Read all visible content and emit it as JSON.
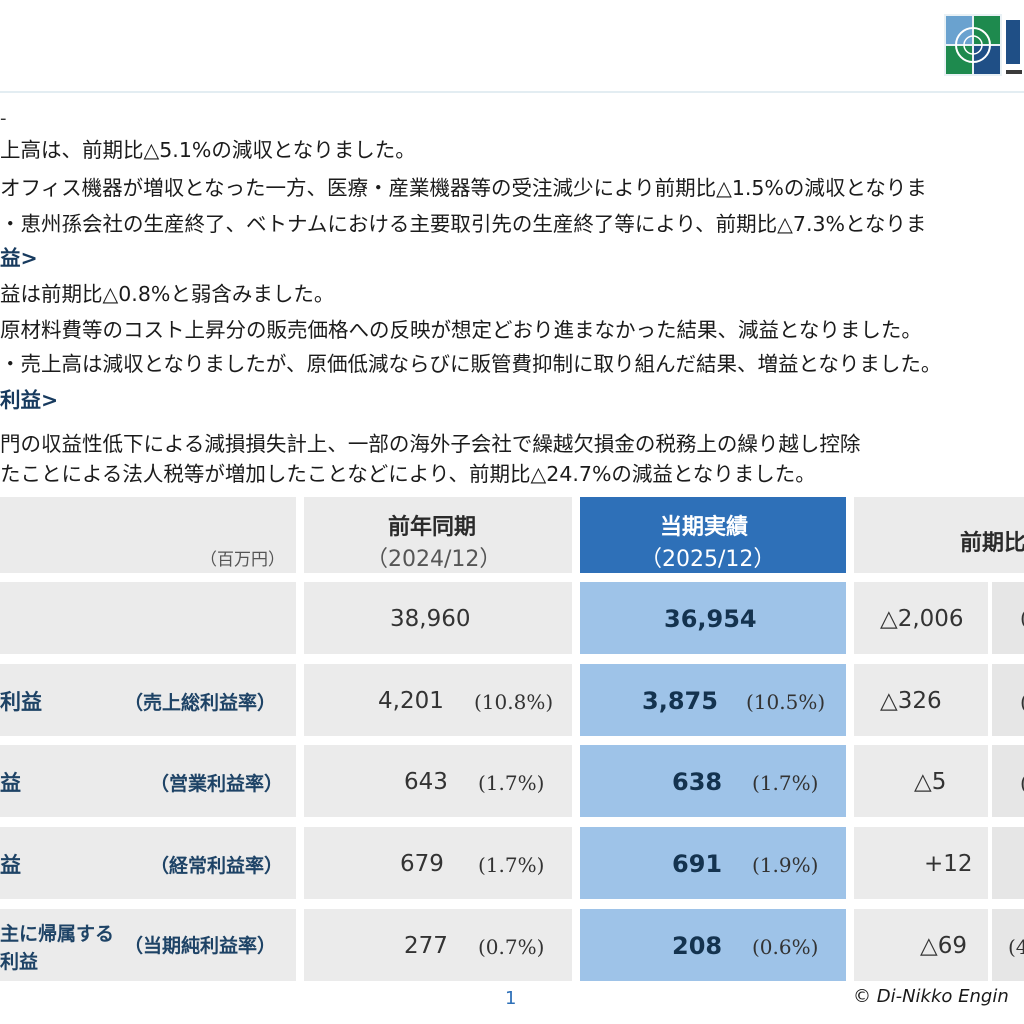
{
  "text": {
    "line1": "上高は、前期比△5.1%の減収となりました。",
    "line2": "オフィス機器が増収となった一方、医療・産業機器等の受注減少により前期比△1.5%の減収となりま",
    "line3": "・恵州孫会社の生産終了、ベトナムにおける主要取引先の生産終了等により、前期比△7.3%となりま",
    "heading2": "益>",
    "line5": "益は前期比△0.8%と弱含みました。",
    "line6": "原材料費等のコスト上昇分の販売価格への反映が想定どおり進まなかった結果、減益となりました。",
    "line7": "・売上高は減収となりましたが、原価低減ならびに販管費抑制に取り組んだ結果、増益となりました。",
    "heading3": "利益>",
    "line9": "門の収益性低下による減損損失計上、一部の海外子会社で繰越欠損金の税務上の繰り越し控除",
    "line10": "たことによる法人税等が増加したことなどにより、前期比△24.7%の減益となりました。"
  },
  "table": {
    "unit": "（百万円）",
    "prev_header": "前年同期",
    "prev_period": "（2024/12）",
    "cur_header": "当期実績",
    "cur_period": "（2025/12）",
    "diff_header": "前期比",
    "rows": [
      {
        "label": "",
        "ratio_label": "",
        "prev": "38,960",
        "prev_pct": "",
        "cur": "36,954",
        "cur_pct": "",
        "diff": "△2,006",
        "diff_pct": "("
      },
      {
        "label": "利益",
        "ratio_label": "（売上総利益率）",
        "prev": "4,201",
        "prev_pct": "(10.8%)",
        "cur": "3,875",
        "cur_pct": "(10.5%)",
        "diff": "△326",
        "diff_pct": "("
      },
      {
        "label": "益",
        "ratio_label": "（営業利益率）",
        "prev": "643",
        "prev_pct": "(1.7%)",
        "cur": "638",
        "cur_pct": "(1.7%)",
        "diff": "△5",
        "diff_pct": "("
      },
      {
        "label": "益",
        "ratio_label": "（経常利益率）",
        "prev": "679",
        "prev_pct": "(1.7%)",
        "cur": "691",
        "cur_pct": "(1.9%)",
        "diff": "+12",
        "diff_pct": ""
      },
      {
        "label": "主に帰属する",
        "label2": "利益",
        "ratio_label": "（当期純利益率）",
        "prev": "277",
        "prev_pct": "(0.7%)",
        "cur": "208",
        "cur_pct": "(0.6%)",
        "diff": "△69",
        "diff_pct": "(4"
      }
    ]
  },
  "footer": {
    "page_number": "1",
    "copyright": "© Di-Nikko Engin"
  },
  "colors": {
    "accent": "#2e70b8",
    "current_fill": "#9ec3e8",
    "gray_fill": "#ebebeb",
    "heading_text": "#173a5e"
  }
}
